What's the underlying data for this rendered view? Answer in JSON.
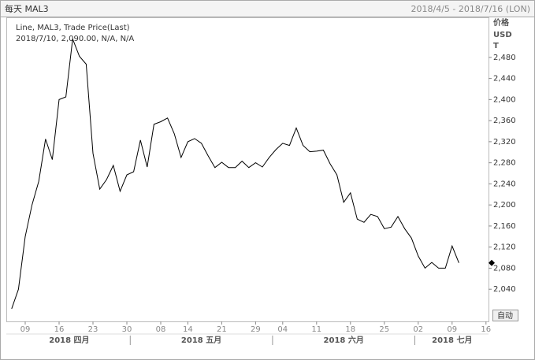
{
  "header": {
    "left": "每天 MAL3",
    "right": "2018/4/5 - 2018/7/16 (LON)"
  },
  "legend": {
    "line1": "Line, MAL3, Trade Price(Last)",
    "line2": "2018/7/10, 2,090.00, N/A, N/A"
  },
  "axis_header": [
    "价格",
    "USD",
    "T"
  ],
  "button": "自动",
  "chart_data": {
    "type": "line",
    "color": "#000000",
    "categories": [
      "2018-04-05",
      "2018-04-06",
      "2018-04-09",
      "2018-04-10",
      "2018-04-11",
      "2018-04-12",
      "2018-04-13",
      "2018-04-16",
      "2018-04-17",
      "2018-04-18",
      "2018-04-19",
      "2018-04-20",
      "2018-04-23",
      "2018-04-24",
      "2018-04-25",
      "2018-04-26",
      "2018-04-27",
      "2018-04-30",
      "2018-05-01",
      "2018-05-02",
      "2018-05-03",
      "2018-05-04",
      "2018-05-08",
      "2018-05-09",
      "2018-05-10",
      "2018-05-11",
      "2018-05-14",
      "2018-05-15",
      "2018-05-16",
      "2018-05-17",
      "2018-05-18",
      "2018-05-21",
      "2018-05-22",
      "2018-05-23",
      "2018-05-24",
      "2018-05-25",
      "2018-05-29",
      "2018-05-30",
      "2018-05-31",
      "2018-06-01",
      "2018-06-04",
      "2018-06-05",
      "2018-06-06",
      "2018-06-07",
      "2018-06-08",
      "2018-06-11",
      "2018-06-12",
      "2018-06-13",
      "2018-06-14",
      "2018-06-15",
      "2018-06-18",
      "2018-06-19",
      "2018-06-20",
      "2018-06-21",
      "2018-06-22",
      "2018-06-25",
      "2018-06-26",
      "2018-06-27",
      "2018-06-28",
      "2018-06-29",
      "2018-07-02",
      "2018-07-03",
      "2018-07-04",
      "2018-07-05",
      "2018-07-06",
      "2018-07-09",
      "2018-07-10",
      "2018-07-11",
      "2018-07-12",
      "2018-07-13",
      "2018-07-16"
    ],
    "values": [
      2003,
      2040,
      2140,
      2200,
      2245,
      2325,
      2286,
      2400,
      2405,
      2515,
      2482,
      2467,
      2298,
      2230,
      2248,
      2275,
      2226,
      2257,
      2263,
      2323,
      2272,
      2353,
      2358,
      2365,
      2335,
      2290,
      2320,
      2326,
      2317,
      2293,
      2271,
      2281,
      2271,
      2271,
      2283,
      2271,
      2280,
      2272,
      2290,
      2305,
      2317,
      2313,
      2346,
      2313,
      2301,
      2302,
      2304,
      2278,
      2257,
      2205,
      2223,
      2173,
      2167,
      2182,
      2178,
      2155,
      2158,
      2178,
      2155,
      2137,
      2103,
      2080,
      2091,
      2080,
      2080,
      2122,
      2090,
      null,
      null,
      null,
      null
    ],
    "ylim": [
      1979,
      2556
    ],
    "yticks": [
      {
        "value": 2040,
        "label": "2,040"
      },
      {
        "value": 2080,
        "label": "2,080"
      },
      {
        "value": 2120,
        "label": "2,120"
      },
      {
        "value": 2160,
        "label": "2,160"
      },
      {
        "value": 2200,
        "label": "2,200"
      },
      {
        "value": 2240,
        "label": "2,240"
      },
      {
        "value": 2280,
        "label": "2,280"
      },
      {
        "value": 2320,
        "label": "2,320"
      },
      {
        "value": 2360,
        "label": "2,360"
      },
      {
        "value": 2400,
        "label": "2,400"
      },
      {
        "value": 2440,
        "label": "2,440"
      },
      {
        "value": 2480,
        "label": "2,480"
      }
    ],
    "xticks": [
      {
        "value": "2018-04-09",
        "label": "09"
      },
      {
        "value": "2018-04-16",
        "label": "16"
      },
      {
        "value": "2018-04-23",
        "label": "23"
      },
      {
        "value": "2018-04-30",
        "label": "30"
      },
      {
        "value": "2018-05-08",
        "label": "08"
      },
      {
        "value": "2018-05-14",
        "label": "14"
      },
      {
        "value": "2018-05-21",
        "label": "21"
      },
      {
        "value": "2018-05-29",
        "label": "29"
      },
      {
        "value": "2018-06-04",
        "label": "04"
      },
      {
        "value": "2018-06-11",
        "label": "11"
      },
      {
        "value": "2018-06-18",
        "label": "18"
      },
      {
        "value": "2018-06-25",
        "label": "25"
      },
      {
        "value": "2018-07-02",
        "label": "02"
      },
      {
        "value": "2018-07-09",
        "label": "09"
      },
      {
        "value": "2018-07-16",
        "label": "16"
      }
    ],
    "x_groups": [
      {
        "value": "2018-04",
        "label": "2018 四月"
      },
      {
        "value": "2018-05",
        "label": "2018 五月"
      },
      {
        "value": "2018-06",
        "label": "2018 六月"
      },
      {
        "value": "2018-07",
        "label": "2018 七月"
      }
    ]
  }
}
